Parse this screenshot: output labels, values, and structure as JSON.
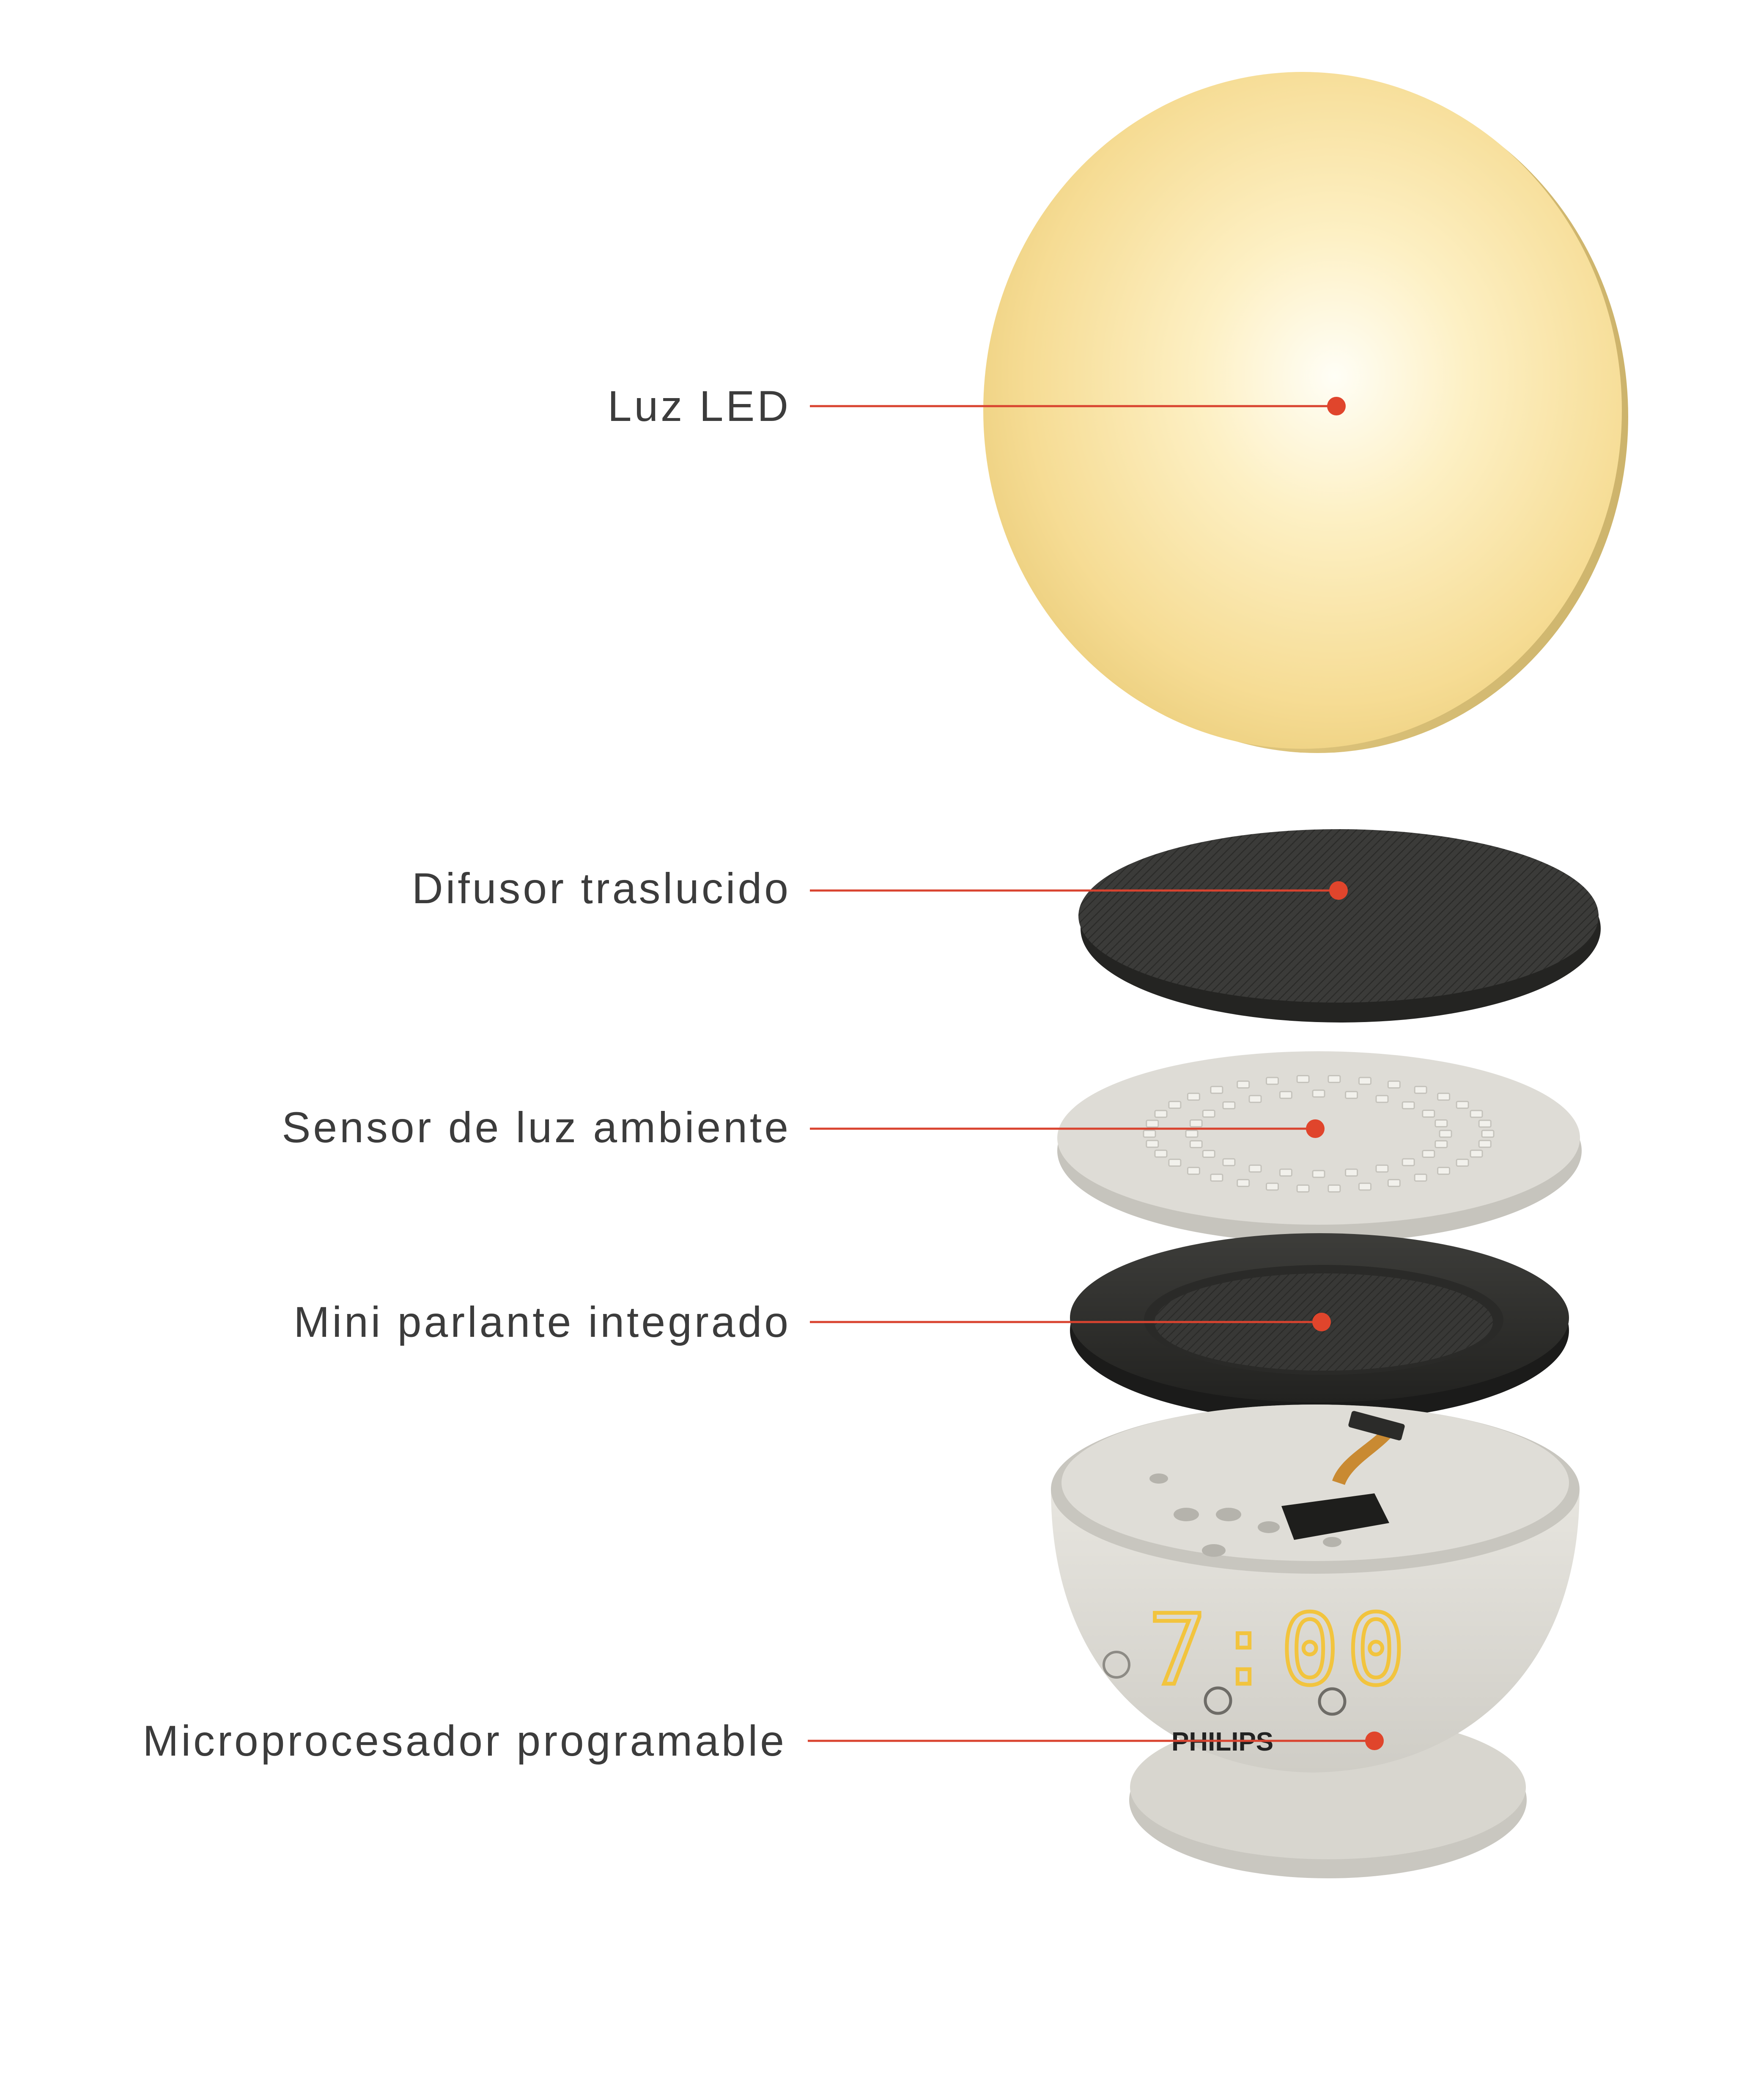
{
  "callouts": [
    {
      "id": "luz-led",
      "label": "Luz LED"
    },
    {
      "id": "difusor",
      "label": "Difusor traslucido"
    },
    {
      "id": "sensor",
      "label": "Sensor de luz ambiente"
    },
    {
      "id": "parlante",
      "label": "Mini parlante integrado"
    },
    {
      "id": "microprocesador",
      "label": "Microprocesador programable"
    }
  ],
  "device": {
    "brand": "PHILIPS",
    "clock_display": "7:00"
  },
  "colors": {
    "leader_line": "#d9432f",
    "dot": "#e0452c",
    "led_glow_center": "#fffdf0",
    "led_glow_edge": "#f6d88c",
    "dark_layer": "#3a3a38",
    "light_layer": "#dcdad4",
    "clock_digits": "#f2c43e"
  }
}
